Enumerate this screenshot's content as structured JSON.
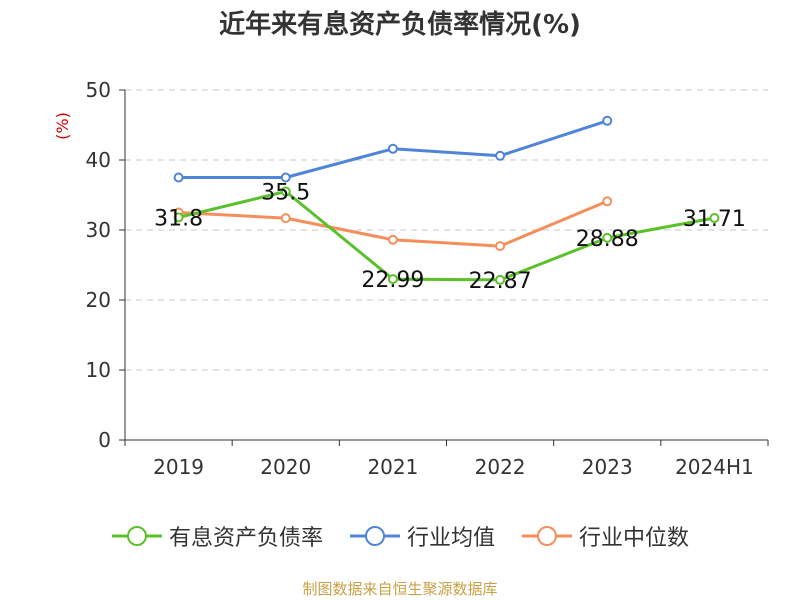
{
  "chart_data": {
    "type": "line",
    "title": "近年来有息资产负债率情况(%)",
    "ylabel": "(%)",
    "categories": [
      "2019",
      "2020",
      "2021",
      "2022",
      "2023",
      "2024H1"
    ],
    "ylim": [
      0,
      50
    ],
    "yticks": [
      0,
      10,
      20,
      30,
      40,
      50
    ],
    "grid": true,
    "legend_position": "bottom",
    "series": [
      {
        "name": "有息资产负债率",
        "color": "#5bc12a",
        "values": [
          31.8,
          35.5,
          22.99,
          22.87,
          28.88,
          31.71
        ],
        "labels": [
          "31.8",
          "35.5",
          "22.99",
          "22.87",
          "28.88",
          "31.71"
        ],
        "show_labels": true
      },
      {
        "name": "行业均值",
        "color": "#4f84d9",
        "values": [
          37.5,
          37.5,
          41.6,
          40.6,
          45.6,
          null
        ],
        "show_labels": false
      },
      {
        "name": "行业中位数",
        "color": "#f48f5b",
        "values": [
          32.5,
          31.7,
          28.6,
          27.7,
          34.1,
          null
        ],
        "show_labels": false
      }
    ]
  },
  "source": "制图数据来自恒生聚源数据库"
}
